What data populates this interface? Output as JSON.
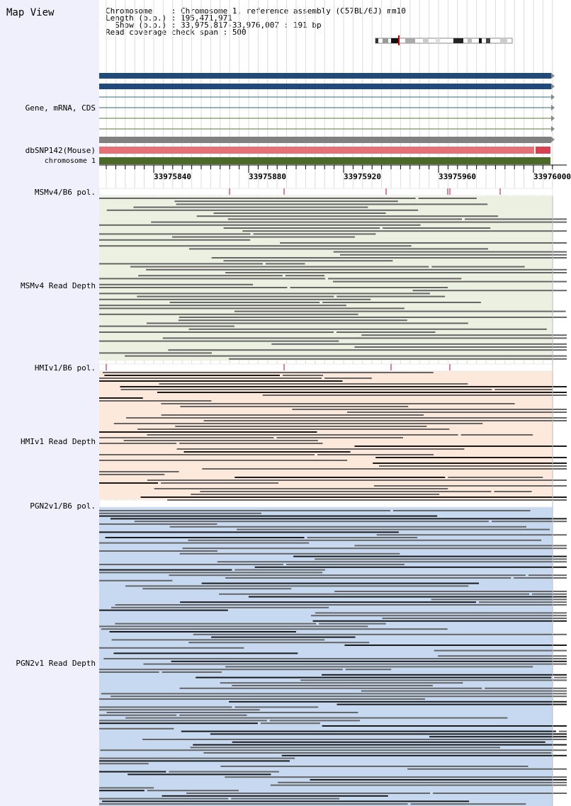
{
  "app": {
    "title": "Map View"
  },
  "info": {
    "chromosome_label": "Chromosome    : ",
    "chromosome": "Chromosome 1, reference assembly (C57BL/6J) mm10",
    "length_label": "Length (b.p.) : ",
    "length": "195,471,971",
    "show_label": "  Show (b.p.) : ",
    "show": "33,975,817-33,976,007 : 191 bp",
    "span_label": "Read coverage check span : ",
    "span": "500"
  },
  "tracks": {
    "gene": "Gene, mRNA, CDS",
    "dbsnp": "dbSNP142(Mouse)",
    "chromosome": "chromosome 1",
    "msm_pol": "MSMv4/B6 pol.",
    "msm_depth": "MSMv4 Read Depth",
    "hmi_pol": "HMIv1/B6 pol.",
    "hmi_depth": "HMIv1 Read Depth",
    "pgn_pol": "PGN2v1/B6 pol.",
    "pgn_depth": "PGN2v1 Read Depth"
  },
  "ruler": {
    "ticks": [
      "33975840",
      "33975880",
      "33975920",
      "33975960",
      "33976000"
    ]
  },
  "colors": {
    "left_panel": "#f0f0fc",
    "gene_bar": "#1f4a7a",
    "dbsnp": "#e57076",
    "chromosome_bar": "#4b6a2a",
    "msm_bg": "#ebf0e0",
    "hmi_bg": "#fce9dc",
    "pgn_bg": "#c6d9f0",
    "read": "#666666",
    "snp_mark": "#c0003a"
  }
}
